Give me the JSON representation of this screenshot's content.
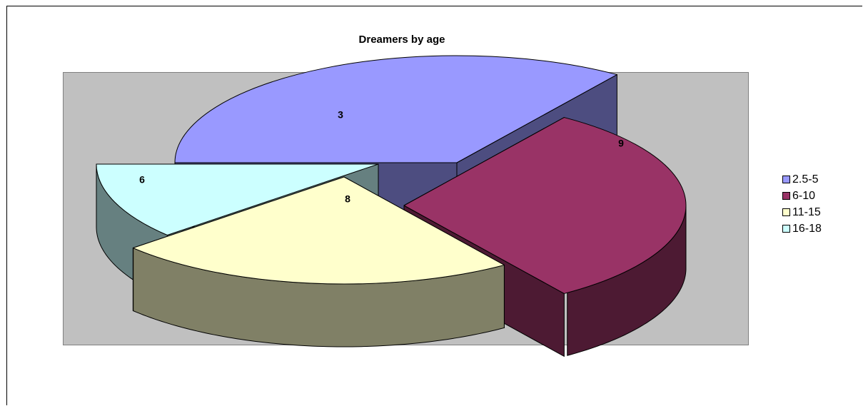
{
  "chart_data": {
    "type": "pie",
    "title": "Dreamers by age",
    "categories": [
      "2.5-5",
      "6-10",
      "11-15",
      "16-18"
    ],
    "values": [
      9,
      8,
      6,
      3
    ],
    "data_labels": [
      "9",
      "8",
      "6",
      "3"
    ],
    "exploded": true,
    "three_d": true,
    "legend_position": "right",
    "colors": {
      "top": [
        "#9999ff",
        "#993366",
        "#ffffcc",
        "#ccffff"
      ],
      "side": [
        "#4d4d80",
        "#4d1a33",
        "#808066",
        "#668080"
      ],
      "plot_background": "#c0c0c0"
    }
  }
}
